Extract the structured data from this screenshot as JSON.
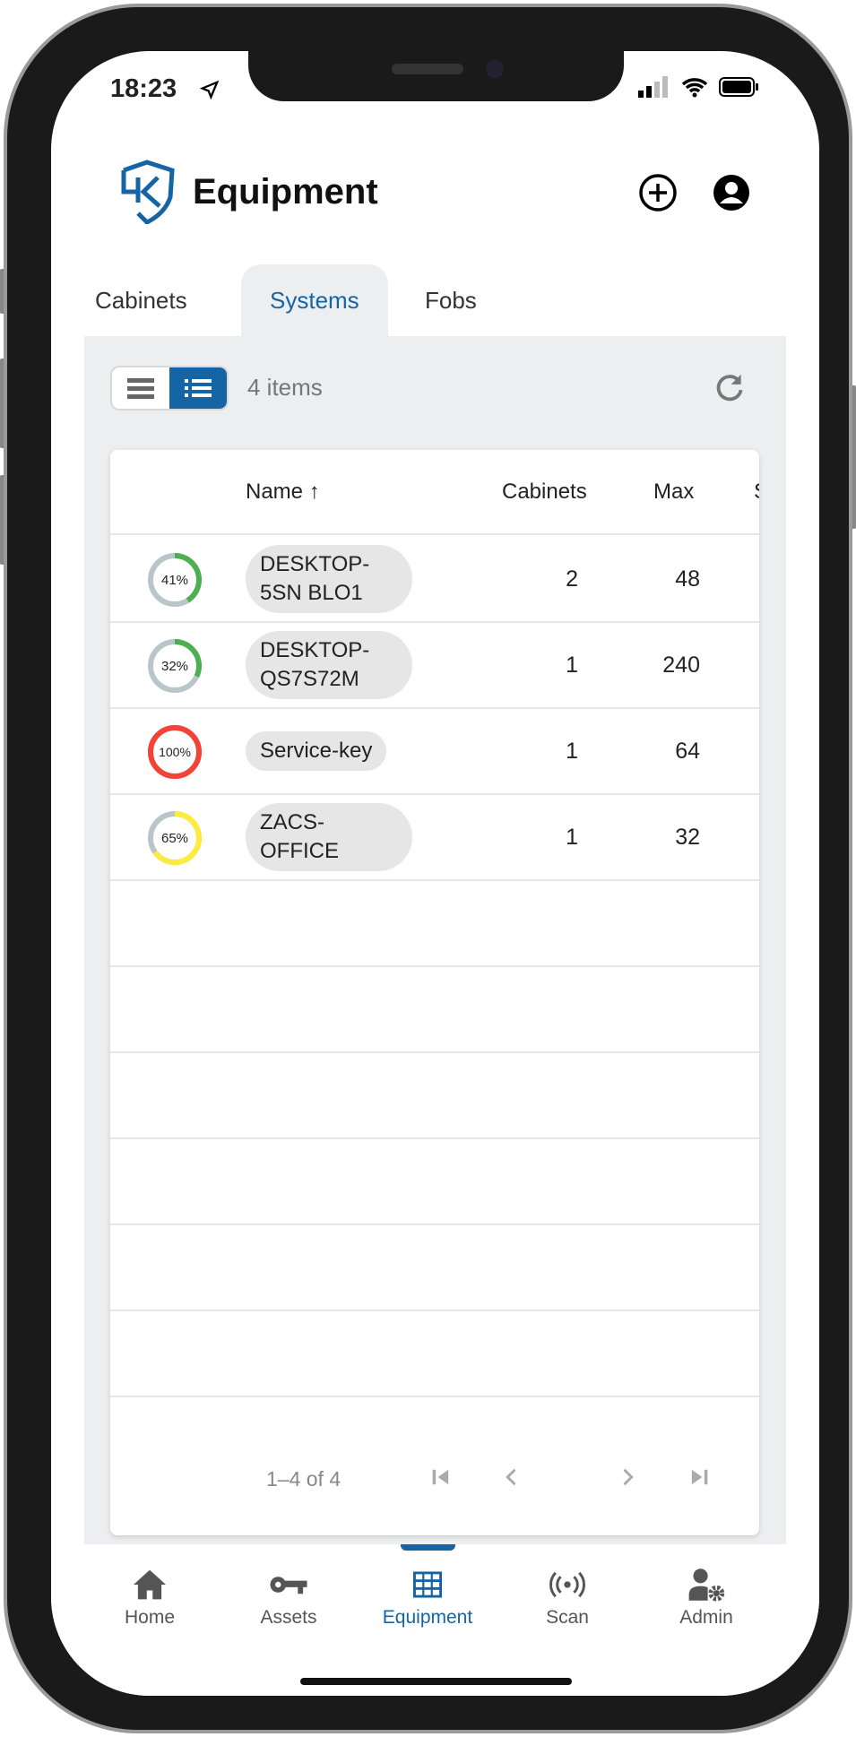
{
  "status_bar": {
    "time": "18:23"
  },
  "header": {
    "title": "Equipment",
    "add_icon": "plus-circle-icon",
    "profile_icon": "account-circle-icon"
  },
  "tabs": [
    {
      "label": "Cabinets"
    },
    {
      "label": "Systems",
      "active": true
    },
    {
      "label": "Fobs"
    }
  ],
  "toolbar": {
    "items_count": "4 items",
    "view_mode": "detail-list"
  },
  "table": {
    "columns": [
      "Name",
      "Cabinets",
      "Max",
      "S"
    ],
    "sort": "Name ascending",
    "rows": [
      {
        "usage": 41,
        "usage_label": "41%",
        "usage_color": "#4caf50",
        "name": "DESKTOP-5SN BLO1",
        "cabinets": "2",
        "max": "48"
      },
      {
        "usage": 32,
        "usage_label": "32%",
        "usage_color": "#4caf50",
        "name": "DESKTOP-QS7S72M",
        "cabinets": "1",
        "max": "240"
      },
      {
        "usage": 100,
        "usage_label": "100%",
        "usage_color": "#f44336",
        "name": "Service-key",
        "cabinets": "1",
        "max": "64"
      },
      {
        "usage": 65,
        "usage_label": "65%",
        "usage_color": "#ffeb3b",
        "name": "ZACS-OFFICE",
        "cabinets": "1",
        "max": "32"
      }
    ]
  },
  "pagination": {
    "range": "1–4 of 4"
  },
  "nav": [
    {
      "label": "Home"
    },
    {
      "label": "Assets"
    },
    {
      "label": "Equipment",
      "active": true
    },
    {
      "label": "Scan"
    },
    {
      "label": "Admin"
    }
  ],
  "colors": {
    "accent": "#1565a6",
    "track": "#b8c5c9"
  }
}
